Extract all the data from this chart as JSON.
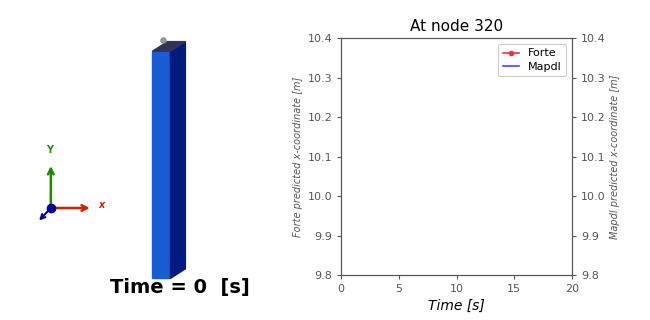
{
  "title": "At node 320",
  "xlabel": "Time [s]",
  "ylabel_left": "Forte predicted x-coordinate [m]",
  "ylabel_right": "Mapdl predicted x-coordinate [m]",
  "xlim": [
    0,
    20
  ],
  "ylim": [
    9.8,
    10.4
  ],
  "xticks": [
    0,
    5,
    10,
    15,
    20
  ],
  "yticks": [
    9.8,
    9.9,
    10.0,
    10.1,
    10.2,
    10.3,
    10.4
  ],
  "legend_entries": [
    "Forte",
    "Mapdl"
  ],
  "legend_colors": [
    "#ee3333",
    "#4444ee"
  ],
  "time_label": "Time = 0  [s]",
  "time_label_fontsize": 14,
  "plate_color_front": "#1a5cd4",
  "plate_color_side": "#001a80",
  "plate_color_top": "#333355",
  "axis_color_x": "#cc2200",
  "axis_color_y": "#228800",
  "axis_color_z": "#000099",
  "bg_color": "#ffffff",
  "tick_color": "#555555",
  "spine_color": "#555555",
  "ylabel_fontsize": 7,
  "xlabel_fontsize": 10,
  "title_fontsize": 11,
  "tick_fontsize": 8,
  "legend_fontsize": 8
}
